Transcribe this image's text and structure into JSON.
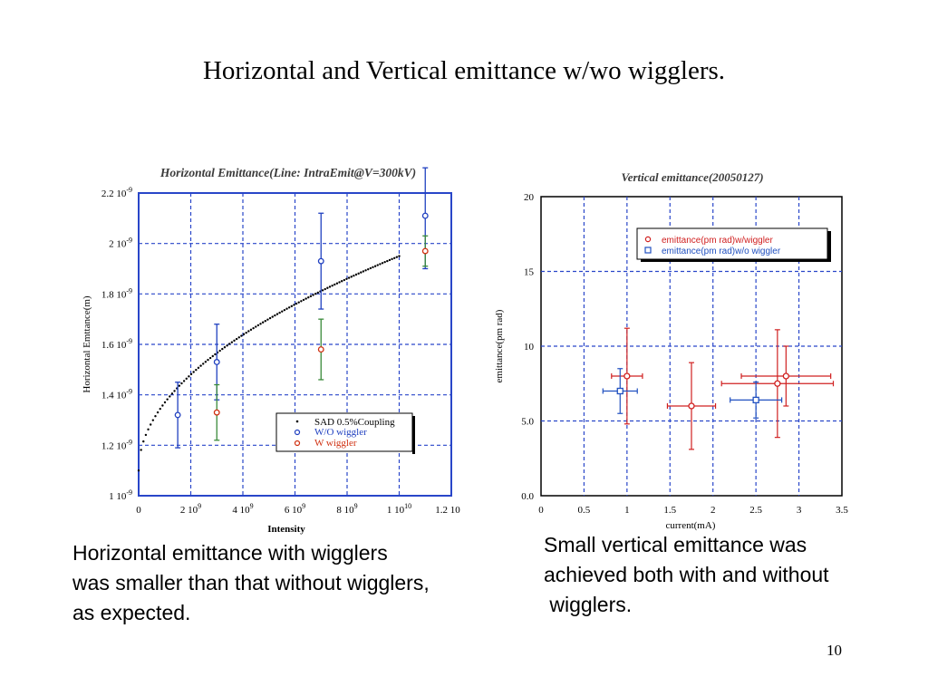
{
  "slide": {
    "title": "Horizontal and Vertical emittance w/wo wigglers.",
    "caption_left": "Horizontal emittance with wigglers\nwas smaller than that without wigglers,\nas expected.",
    "caption_right": "Small vertical emittance was\nachieved both with and without\n wigglers.",
    "page_number": "10"
  },
  "chart_data": [
    {
      "type": "scatter",
      "title": "Horizontal Emittance(Line: IntraEmit@V=300kV)",
      "xlabel": "Intensity",
      "ylabel": "Horizontal Emttance(m)",
      "xlim": [
        0,
        12000000000.0
      ],
      "ylim": [
        1e-09,
        2.2e-09
      ],
      "grid": true,
      "legend_position": "bottom-right",
      "x_ticks": [
        {
          "v": 0,
          "label": "0"
        },
        {
          "v": 2000000000.0,
          "label": "2 10",
          "exp": "9"
        },
        {
          "v": 4000000000.0,
          "label": "4 10",
          "exp": "9"
        },
        {
          "v": 6000000000.0,
          "label": "6 10",
          "exp": "9"
        },
        {
          "v": 8000000000.0,
          "label": "8 10",
          "exp": "9"
        },
        {
          "v": 10000000000.0,
          "label": "1 10",
          "exp": "10"
        },
        {
          "v": 12000000000.0,
          "label": "1.2 10",
          "exp": "10"
        }
      ],
      "y_ticks": [
        {
          "v": 1e-09,
          "label": "1 10",
          "exp": "-9"
        },
        {
          "v": 1.2e-09,
          "label": "1.2 10",
          "exp": "-9"
        },
        {
          "v": 1.4e-09,
          "label": "1.4 10",
          "exp": "-9"
        },
        {
          "v": 1.6e-09,
          "label": "1.6 10",
          "exp": "-9"
        },
        {
          "v": 1.8e-09,
          "label": "1.8 10",
          "exp": "-9"
        },
        {
          "v": 2e-09,
          "label": "2 10",
          "exp": "-9"
        },
        {
          "v": 2.2e-09,
          "label": "2.2 10",
          "exp": "-9"
        }
      ],
      "series": [
        {
          "name": "SAD 0.5%Coupling",
          "color": "#000000",
          "kind": "line-dots",
          "curve": {
            "a": 1.1e-09,
            "b": 8.5e-10,
            "power": 0.5,
            "xmax": 10000000000.0
          },
          "points_count": 110
        },
        {
          "name": "W/O wiggler",
          "color": "#2040c0",
          "kind": "errorbar",
          "points": [
            {
              "x": 1500000000.0,
              "y": 1.32e-09,
              "ylo": 1.19e-09,
              "yhi": 1.45e-09
            },
            {
              "x": 3000000000.0,
              "y": 1.53e-09,
              "ylo": 1.38e-09,
              "yhi": 1.68e-09
            },
            {
              "x": 7000000000.0,
              "y": 1.93e-09,
              "ylo": 1.74e-09,
              "yhi": 2.12e-09
            },
            {
              "x": 11000000000.0,
              "y": 2.11e-09,
              "ylo": 1.9e-09,
              "yhi": 2.3e-09
            }
          ]
        },
        {
          "name": "W wiggler",
          "color": "#d03010",
          "bar_color": "#3a8a3a",
          "kind": "errorbar",
          "points": [
            {
              "x": 3000000000.0,
              "y": 1.33e-09,
              "ylo": 1.22e-09,
              "yhi": 1.44e-09
            },
            {
              "x": 7000000000.0,
              "y": 1.58e-09,
              "ylo": 1.46e-09,
              "yhi": 1.7e-09
            },
            {
              "x": 11000000000.0,
              "y": 1.97e-09,
              "ylo": 1.91e-09,
              "yhi": 2.03e-09
            }
          ]
        }
      ]
    },
    {
      "type": "scatter",
      "title": "Vertical emittance(20050127)",
      "xlabel": "current(mA)",
      "ylabel": "emittance(pm rad)",
      "xlim": [
        0,
        3.5
      ],
      "ylim": [
        0,
        20
      ],
      "grid": true,
      "legend_position": "top-right",
      "x_ticks": [
        {
          "v": 0,
          "label": "0"
        },
        {
          "v": 0.5,
          "label": "0.5"
        },
        {
          "v": 1,
          "label": "1"
        },
        {
          "v": 1.5,
          "label": "1.5"
        },
        {
          "v": 2,
          "label": "2"
        },
        {
          "v": 2.5,
          "label": "2.5"
        },
        {
          "v": 3,
          "label": "3"
        },
        {
          "v": 3.5,
          "label": "3.5"
        }
      ],
      "y_ticks": [
        {
          "v": 0,
          "label": "0.0"
        },
        {
          "v": 5,
          "label": "5.0"
        },
        {
          "v": 10,
          "label": "10"
        },
        {
          "v": 15,
          "label": "15"
        },
        {
          "v": 20,
          "label": "20"
        }
      ],
      "series": [
        {
          "name": "emittance(pm rad)w/wiggler",
          "color": "#d02020",
          "marker": "circle",
          "points": [
            {
              "x": 1.0,
              "y": 8.0,
              "xerr": 0.18,
              "yerr": 3.2
            },
            {
              "x": 1.75,
              "y": 6.0,
              "xerr": 0.28,
              "yerr": 2.9
            },
            {
              "x": 2.75,
              "y": 7.5,
              "xerr": 0.65,
              "yerr": 3.6
            },
            {
              "x": 2.85,
              "y": 8.0,
              "xerr": 0.52,
              "yerr": 2.0
            }
          ]
        },
        {
          "name": "emittance(pm rad)w/o wiggler",
          "color": "#2050c0",
          "marker": "square",
          "points": [
            {
              "x": 0.92,
              "y": 7.0,
              "xerr": 0.2,
              "yerr": 1.5
            },
            {
              "x": 2.5,
              "y": 6.4,
              "xerr": 0.3,
              "yerr": 1.2
            }
          ]
        }
      ]
    }
  ]
}
